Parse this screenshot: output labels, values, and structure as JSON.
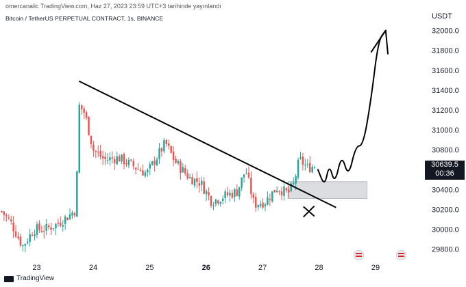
{
  "header": {
    "published": "omercanalic TradingView.com, Haz 27, 2023 23:59 UTC+3 tarihinde yayınlandı",
    "symbol": "Bitcoin / TetherUS PERPETUAL CONTRACT, 1s, BINANCE",
    "unit": "USDT"
  },
  "price_tag": {
    "price": "30639.5",
    "countdown": "00:36"
  },
  "footer": {
    "brand": "TradingView"
  },
  "icons": [
    "tradingview-logo-icon",
    "us-flag-event-icon"
  ],
  "colors": {
    "up": "#26a69a",
    "down": "#ef5350",
    "zone": "#dcdde1",
    "line": "#000000"
  },
  "chart_data": {
    "type": "candlestick",
    "title": "Bitcoin / TetherUS PERPETUAL CONTRACT, 1s, BINANCE",
    "ylabel": "USDT",
    "ylim": [
      29750,
      32100
    ],
    "yticks": [
      "32000.0",
      "31800.0",
      "31600.0",
      "31400.0",
      "31200.0",
      "31000.0",
      "30800.0",
      "30600.0",
      "30400.0",
      "30200.0",
      "30000.0",
      "29800.0"
    ],
    "xticks": [
      {
        "label": "23",
        "x": 23.0
      },
      {
        "label": "24",
        "x": 24.0
      },
      {
        "label": "25",
        "x": 25.0
      },
      {
        "label": "26",
        "x": 26.0,
        "bold": true
      },
      {
        "label": "27",
        "x": 27.0
      },
      {
        "label": "28",
        "x": 28.0
      },
      {
        "label": "29",
        "x": 29.0
      }
    ],
    "xlim": [
      22.35,
      29.85
    ],
    "candles_start": 22.38,
    "candles_end": 27.94,
    "anchors": [
      {
        "x": 22.38,
        "p": 30180
      },
      {
        "x": 22.55,
        "p": 30060
      },
      {
        "x": 22.75,
        "p": 29830
      },
      {
        "x": 22.95,
        "p": 30000
      },
      {
        "x": 23.15,
        "p": 30000
      },
      {
        "x": 23.35,
        "p": 30050
      },
      {
        "x": 23.55,
        "p": 30130
      },
      {
        "x": 23.7,
        "p": 30200
      },
      {
        "x": 23.74,
        "p": 31250
      },
      {
        "x": 23.85,
        "p": 31170
      },
      {
        "x": 24.0,
        "p": 30800
      },
      {
        "x": 24.2,
        "p": 30700
      },
      {
        "x": 24.45,
        "p": 30720
      },
      {
        "x": 24.7,
        "p": 30640
      },
      {
        "x": 24.95,
        "p": 30560
      },
      {
        "x": 25.1,
        "p": 30700
      },
      {
        "x": 25.28,
        "p": 30870
      },
      {
        "x": 25.45,
        "p": 30680
      },
      {
        "x": 25.7,
        "p": 30520
      },
      {
        "x": 25.9,
        "p": 30470
      },
      {
        "x": 26.1,
        "p": 30280
      },
      {
        "x": 26.3,
        "p": 30330
      },
      {
        "x": 26.55,
        "p": 30380
      },
      {
        "x": 26.7,
        "p": 30600
      },
      {
        "x": 26.85,
        "p": 30250
      },
      {
        "x": 27.05,
        "p": 30280
      },
      {
        "x": 27.25,
        "p": 30420
      },
      {
        "x": 27.45,
        "p": 30360
      },
      {
        "x": 27.55,
        "p": 30450
      },
      {
        "x": 27.65,
        "p": 30700
      },
      {
        "x": 27.8,
        "p": 30620
      },
      {
        "x": 27.94,
        "p": 30640
      }
    ],
    "trendline": [
      {
        "x": 23.75,
        "y": 31490
      },
      {
        "x": 28.3,
        "y": 30220
      }
    ],
    "support_zone": {
      "x0": 27.45,
      "x1": 28.85,
      "y0": 30310,
      "y1": 30480
    },
    "projection": [
      [
        27.98,
        30600
      ],
      [
        28.1,
        30430
      ],
      [
        28.18,
        30660
      ],
      [
        28.28,
        30450
      ],
      [
        28.4,
        30760
      ],
      [
        28.52,
        30520
      ],
      [
        28.65,
        30840
      ],
      [
        28.78,
        30840
      ],
      [
        28.92,
        31300
      ],
      [
        29.05,
        31900
      ],
      [
        29.18,
        32000
      ]
    ],
    "arrow_head": [
      [
        28.92,
        31780
      ],
      [
        29.18,
        32000
      ],
      [
        29.22,
        31760
      ]
    ],
    "cross_marker": {
      "x": 27.82,
      "y": 30180
    },
    "events": [
      {
        "x": 28.7,
        "icon": "us-flag-event-icon"
      },
      {
        "x": 29.45,
        "icon": "us-flag-event-icon"
      }
    ]
  }
}
